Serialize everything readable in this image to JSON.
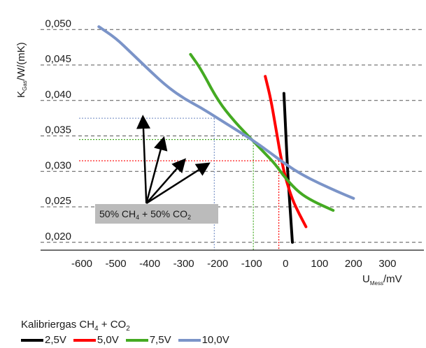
{
  "chart_data": {
    "type": "line",
    "ylabel": {
      "main": "K",
      "sub": "Gas",
      "rest": "/W/(mK)"
    },
    "xlabel": {
      "main": "U",
      "sub": "Mess",
      "rest": "/mV"
    },
    "xlim": [
      -600,
      300
    ],
    "ylim": [
      0.0175,
      0.052
    ],
    "xticks": [
      "-600",
      "-500",
      "-400",
      "-300",
      "-200",
      "-100",
      "0",
      "100",
      "200",
      "300"
    ],
    "xtick_values": [
      -600,
      -500,
      -400,
      -300,
      -200,
      -100,
      0,
      100,
      200,
      300
    ],
    "yticks": [
      "0,050",
      "0,045",
      "0,040",
      "0,035",
      "0,030",
      "0,025",
      "0,020"
    ],
    "ytick_values": [
      0.05,
      0.045,
      0.04,
      0.035,
      0.03,
      0.025,
      0.02
    ],
    "grid": "horizontal dashed",
    "series": [
      {
        "name": "2,5V",
        "color": "#000000",
        "x": [
          -5,
          0,
          5,
          10,
          15,
          20
        ],
        "y": [
          0.041,
          0.036,
          0.031,
          0.027,
          0.0235,
          0.02
        ]
      },
      {
        "name": "5,0V",
        "color": "#ff0000",
        "x": [
          -60,
          -45,
          -30,
          -15,
          0,
          20,
          40,
          60
        ],
        "y": [
          0.0434,
          0.0405,
          0.0365,
          0.0322,
          0.029,
          0.026,
          0.024,
          0.0222
        ]
      },
      {
        "name": "7,5V",
        "color": "#44aa22",
        "x": [
          -280,
          -250,
          -200,
          -150,
          -100,
          -60,
          -30,
          0,
          40,
          80,
          140
        ],
        "y": [
          0.0465,
          0.0445,
          0.04,
          0.037,
          0.0345,
          0.0325,
          0.031,
          0.029,
          0.027,
          0.0258,
          0.0245
        ]
      },
      {
        "name": "10,0V",
        "color": "#7b94c8",
        "x": [
          -550,
          -500,
          -450,
          -400,
          -350,
          -300,
          -250,
          -200,
          -150,
          -100,
          -50,
          0,
          50,
          100,
          150,
          200
        ],
        "y": [
          0.0504,
          0.0488,
          0.0465,
          0.0442,
          0.042,
          0.0403,
          0.039,
          0.0375,
          0.036,
          0.0345,
          0.0328,
          0.031,
          0.0295,
          0.0283,
          0.0272,
          0.0262
        ]
      }
    ],
    "reference_lines": [
      {
        "color": "#7b94c8",
        "x": -210,
        "y": 0.0375
      },
      {
        "color": "#44aa22",
        "x": -95,
        "y": 0.0345
      },
      {
        "color": "#ff0000",
        "x": -20,
        "y": 0.0315
      }
    ],
    "annotation": {
      "text": {
        "a": "50% CH",
        "b": "4",
        "c": " + 50% CO",
        "d": "2"
      },
      "anchor": [
        -410,
        0.0255
      ],
      "arrow_targets": [
        [
          -420,
          0.0375
        ],
        [
          -360,
          0.0345
        ],
        [
          -300,
          0.0315
        ],
        [
          -230,
          0.031
        ]
      ]
    },
    "legend": {
      "title": {
        "a": "Kalibriergas CH",
        "b": "4",
        "c": " + CO",
        "d": "2"
      },
      "placement": "bottom"
    }
  }
}
